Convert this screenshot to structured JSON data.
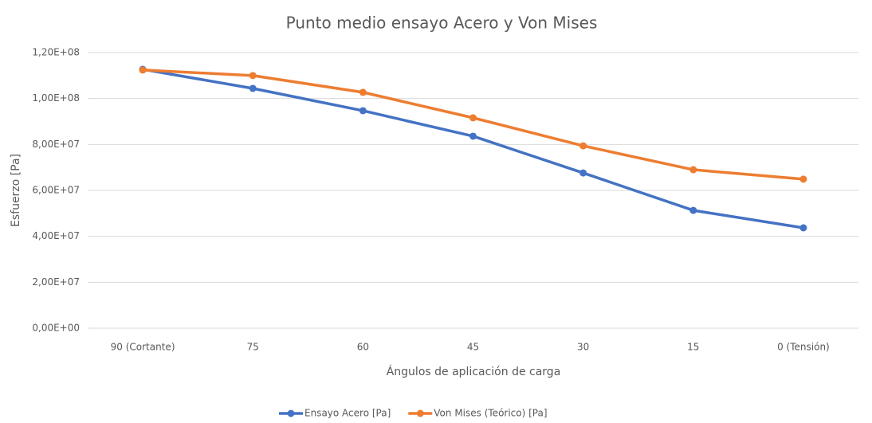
{
  "chart_data": {
    "type": "line",
    "title": "Punto medio ensayo Acero y Von Mises",
    "xlabel": "Ángulos de aplicación de carga",
    "ylabel": "Esfuerzo [Pa]",
    "categories": [
      "90 (Cortante)",
      "75",
      "60",
      "45",
      "30",
      "15",
      "0 (Tensión)"
    ],
    "series": [
      {
        "name": "Ensayo Acero [Pa]",
        "color": "#4472c4",
        "values": [
          112700000,
          104400000,
          94700000,
          83600000,
          67600000,
          51300000,
          43700000
        ]
      },
      {
        "name": "Von Mises (Teórico) [Pa]",
        "color": "#ed7d31",
        "values": [
          112400000,
          110000000,
          102700000,
          91600000,
          79400000,
          69000000,
          64900000
        ]
      }
    ],
    "ylim": [
      0,
      120000000
    ],
    "yticks": [
      {
        "value": 0,
        "label": "0,00E+00"
      },
      {
        "value": 20000000,
        "label": "2,00E+07"
      },
      {
        "value": 40000000,
        "label": "4,00E+07"
      },
      {
        "value": 60000000,
        "label": "6,00E+07"
      },
      {
        "value": 80000000,
        "label": "8,00E+07"
      },
      {
        "value": 100000000,
        "label": "1,00E+08"
      },
      {
        "value": 120000000,
        "label": "1,20E+08"
      }
    ],
    "grid": true,
    "legend": "bottom"
  }
}
